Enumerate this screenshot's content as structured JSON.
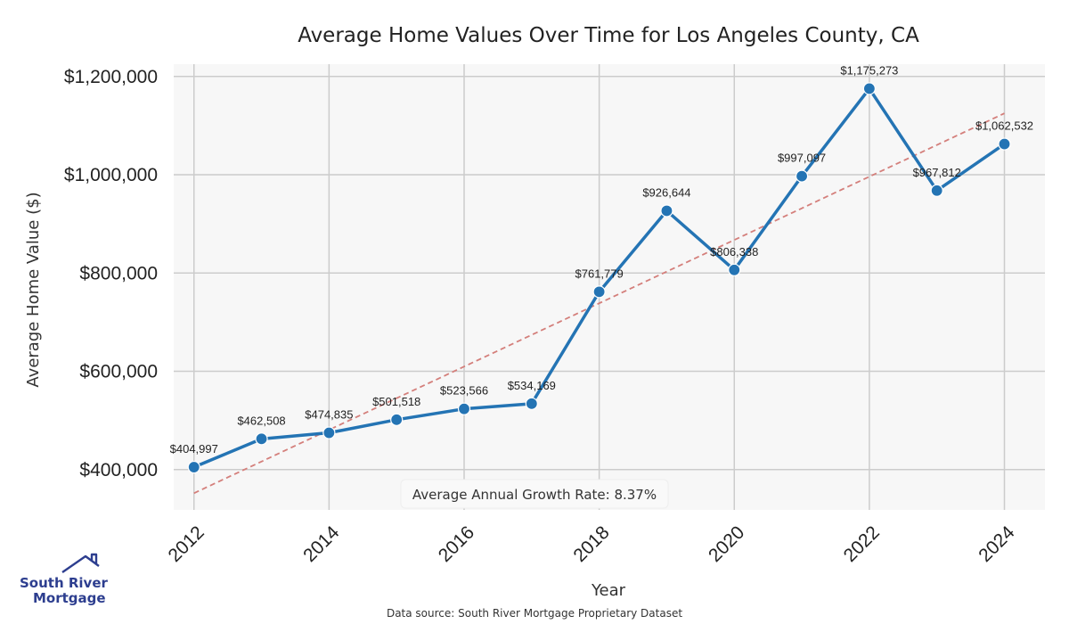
{
  "chart_data": {
    "type": "line",
    "title": "Average Home Values Over Time for Los Angeles County, CA",
    "xlabel": "Year",
    "ylabel": "Average Home Value ($)",
    "x": [
      2012,
      2013,
      2014,
      2015,
      2016,
      2017,
      2018,
      2019,
      2020,
      2021,
      2022,
      2023,
      2024
    ],
    "values": [
      404997,
      462508,
      474835,
      501518,
      523566,
      534169,
      761779,
      926644,
      806338,
      997097,
      1175273,
      967812,
      1062532
    ],
    "point_labels": [
      "$404,997",
      "$462,508",
      "$474,835",
      "$501,518",
      "$523,566",
      "$534,169",
      "$761,779",
      "$926,644",
      "$806,338",
      "$997,097",
      "$1,175,273",
      "$967,812",
      "$1,062,532"
    ],
    "xticks": [
      "2012",
      "2014",
      "2016",
      "2018",
      "2020",
      "2022",
      "2024"
    ],
    "xtick_values": [
      2012,
      2014,
      2016,
      2018,
      2020,
      2022,
      2024
    ],
    "yticks": [
      "$400,000",
      "$600,000",
      "$800,000",
      "$1,000,000",
      "$1,200,000"
    ],
    "ytick_values": [
      400000,
      600000,
      800000,
      1000000,
      1200000
    ],
    "xlim": [
      2011.7,
      2024.6
    ],
    "ylim": [
      318000,
      1225000
    ],
    "trendline": {
      "x": [
        2012,
        2024
      ],
      "y": [
        352000,
        1125000
      ],
      "color": "#d47f7b",
      "style": "dashed"
    },
    "annotation": "Average Annual Growth Rate: 8.37%",
    "grid": true,
    "line_color": "#2474b4",
    "plot_background": "#f7f7f7",
    "grid_color": "#cccccc"
  },
  "footer": {
    "source": "Data source: South River Mortgage Proprietary Dataset"
  },
  "logo": {
    "line1": "South River",
    "line2": "Mortgage",
    "color": "#2d3e8f"
  }
}
